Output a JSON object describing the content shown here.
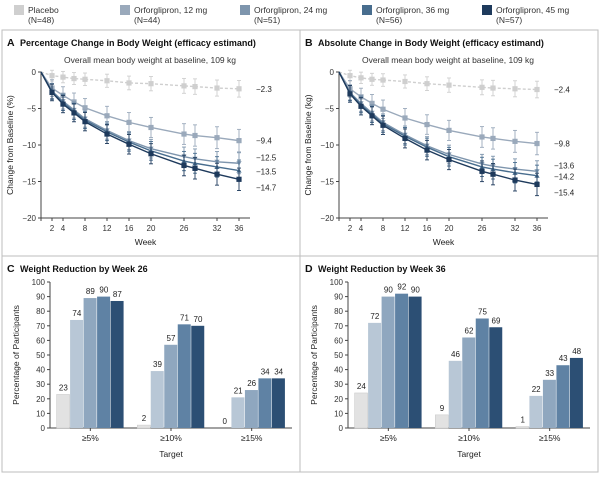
{
  "legend": [
    {
      "label": "Placebo",
      "n": "(N=48)",
      "color": "#cfcfcf",
      "marker": "square"
    },
    {
      "label": "Orforglipron, 12 mg",
      "n": "(N=44)",
      "color": "#9aa9bb",
      "marker": "square"
    },
    {
      "label": "Orforglipron, 24 mg",
      "n": "(N=51)",
      "color": "#7e95ad",
      "marker": "triangle-down"
    },
    {
      "label": "Orforglipron, 36 mg",
      "n": "(N=56)",
      "color": "#486d8e",
      "marker": "triangle-up"
    },
    {
      "label": "Orforglipron, 45 mg",
      "n": "(N=57)",
      "color": "#1e3a5c",
      "marker": "square"
    }
  ],
  "chart_data": [
    {
      "panel_letter": "A",
      "type": "line",
      "title": "Percentage Change in Body Weight (efficacy estimand)",
      "subtitle": "Overall mean body weight at baseline, 109 kg",
      "xlabel": "Week",
      "ylabel": "Change from Baseline (%)",
      "x": [
        0,
        2,
        4,
        6,
        8,
        12,
        16,
        20,
        26,
        28,
        32,
        36
      ],
      "xticks": [
        0,
        2,
        4,
        8,
        12,
        16,
        20,
        26,
        32,
        36
      ],
      "xtick_labels": [
        "",
        "2",
        "4",
        "8",
        "12",
        "16",
        "20",
        "26",
        "32",
        "36"
      ],
      "xlim": [
        0,
        38
      ],
      "ylim": [
        -20,
        0
      ],
      "yticks": [
        0,
        -5,
        -10,
        -15,
        -20
      ],
      "grid": false,
      "series": [
        {
          "name": "Placebo",
          "values": [
            0,
            -0.5,
            -0.7,
            -0.9,
            -1.0,
            -1.2,
            -1.5,
            -1.6,
            -1.9,
            -2.0,
            -2.2,
            -2.3
          ],
          "end_label": "−2.3"
        },
        {
          "name": "Orforglipron, 12 mg",
          "values": [
            0,
            -2.2,
            -3.2,
            -4.1,
            -4.9,
            -6.0,
            -6.9,
            -7.6,
            -8.5,
            -8.7,
            -9.0,
            -9.4
          ],
          "end_label": "−9.4"
        },
        {
          "name": "Orforglipron, 24 mg",
          "values": [
            0,
            -2.6,
            -4.0,
            -5.2,
            -6.4,
            -8.0,
            -9.4,
            -10.5,
            -11.6,
            -11.9,
            -12.3,
            -12.5
          ],
          "end_label": "−12.5"
        },
        {
          "name": "Orforglipron, 36 mg",
          "values": [
            0,
            -2.7,
            -4.2,
            -5.4,
            -6.6,
            -8.2,
            -9.6,
            -10.8,
            -12.2,
            -12.5,
            -13.0,
            -13.5
          ],
          "end_label": "−13.5"
        },
        {
          "name": "Orforglipron, 45 mg",
          "values": [
            0,
            -2.8,
            -4.4,
            -5.6,
            -6.8,
            -8.5,
            -9.9,
            -11.2,
            -12.8,
            -13.2,
            -14.0,
            -14.7
          ],
          "end_label": "−14.7"
        }
      ]
    },
    {
      "panel_letter": "B",
      "type": "line",
      "title": "Absolute Change in Body Weight (efficacy estimand)",
      "subtitle": "Overall mean body weight at baseline, 109 kg",
      "xlabel": "Week",
      "ylabel": "Change from Baseline (kg)",
      "x": [
        0,
        2,
        4,
        6,
        8,
        12,
        16,
        20,
        26,
        28,
        32,
        36
      ],
      "xticks": [
        0,
        2,
        4,
        8,
        12,
        16,
        20,
        26,
        32,
        36
      ],
      "xtick_labels": [
        "",
        "2",
        "4",
        "8",
        "12",
        "16",
        "20",
        "26",
        "32",
        "36"
      ],
      "xlim": [
        0,
        38
      ],
      "ylim": [
        -20,
        0
      ],
      "yticks": [
        0,
        -5,
        -10,
        -15,
        -20
      ],
      "grid": false,
      "series": [
        {
          "name": "Placebo",
          "values": [
            0,
            -0.5,
            -0.8,
            -1.0,
            -1.1,
            -1.3,
            -1.6,
            -1.8,
            -2.1,
            -2.2,
            -2.3,
            -2.4
          ],
          "end_label": "−2.4"
        },
        {
          "name": "Orforglipron, 12 mg",
          "values": [
            0,
            -2.3,
            -3.4,
            -4.3,
            -5.1,
            -6.3,
            -7.2,
            -8.0,
            -8.9,
            -9.1,
            -9.5,
            -9.8
          ],
          "end_label": "−9.8"
        },
        {
          "name": "Orforglipron, 24 mg",
          "values": [
            0,
            -2.8,
            -4.3,
            -5.6,
            -6.9,
            -8.6,
            -10.1,
            -11.3,
            -12.6,
            -12.9,
            -13.3,
            -13.6
          ],
          "end_label": "−13.6"
        },
        {
          "name": "Orforglipron, 36 mg",
          "values": [
            0,
            -2.9,
            -4.5,
            -5.8,
            -7.1,
            -8.8,
            -10.3,
            -11.6,
            -13.0,
            -13.3,
            -13.8,
            -14.2
          ],
          "end_label": "−14.2"
        },
        {
          "name": "Orforglipron, 45 mg",
          "values": [
            0,
            -3.0,
            -4.7,
            -6.0,
            -7.3,
            -9.1,
            -10.7,
            -12.0,
            -13.6,
            -14.0,
            -14.8,
            -15.4
          ],
          "end_label": "−15.4"
        }
      ]
    },
    {
      "panel_letter": "C",
      "type": "bar",
      "title": "Weight Reduction by Week 26",
      "xlabel": "Target",
      "ylabel": "Percentage of Participants",
      "categories": [
        "≥5%",
        "≥10%",
        "≥15%"
      ],
      "ylim": [
        0,
        100
      ],
      "yticks": [
        0,
        10,
        20,
        30,
        40,
        50,
        60,
        70,
        80,
        90,
        100
      ],
      "series": [
        {
          "name": "Placebo",
          "values": [
            23,
            2,
            0
          ]
        },
        {
          "name": "Orforglipron, 12 mg",
          "values": [
            74,
            39,
            21
          ]
        },
        {
          "name": "Orforglipron, 24 mg",
          "values": [
            89,
            57,
            26
          ]
        },
        {
          "name": "Orforglipron, 36 mg",
          "values": [
            90,
            71,
            34
          ]
        },
        {
          "name": "Orforglipron, 45 mg",
          "values": [
            87,
            70,
            34
          ]
        }
      ]
    },
    {
      "panel_letter": "D",
      "type": "bar",
      "title": "Weight Reduction by Week 36",
      "xlabel": "Target",
      "ylabel": "Percentage of Participants",
      "categories": [
        "≥5%",
        "≥10%",
        "≥15%"
      ],
      "ylim": [
        0,
        100
      ],
      "yticks": [
        0,
        10,
        20,
        30,
        40,
        50,
        60,
        70,
        80,
        90,
        100
      ],
      "series": [
        {
          "name": "Placebo",
          "values": [
            24,
            9,
            1
          ]
        },
        {
          "name": "Orforglipron, 12 mg",
          "values": [
            72,
            46,
            22
          ]
        },
        {
          "name": "Orforglipron, 24 mg",
          "values": [
            90,
            62,
            33
          ]
        },
        {
          "name": "Orforglipron, 36 mg",
          "values": [
            92,
            75,
            43
          ]
        },
        {
          "name": "Orforglipron, 45 mg",
          "values": [
            90,
            69,
            48
          ]
        }
      ]
    }
  ]
}
